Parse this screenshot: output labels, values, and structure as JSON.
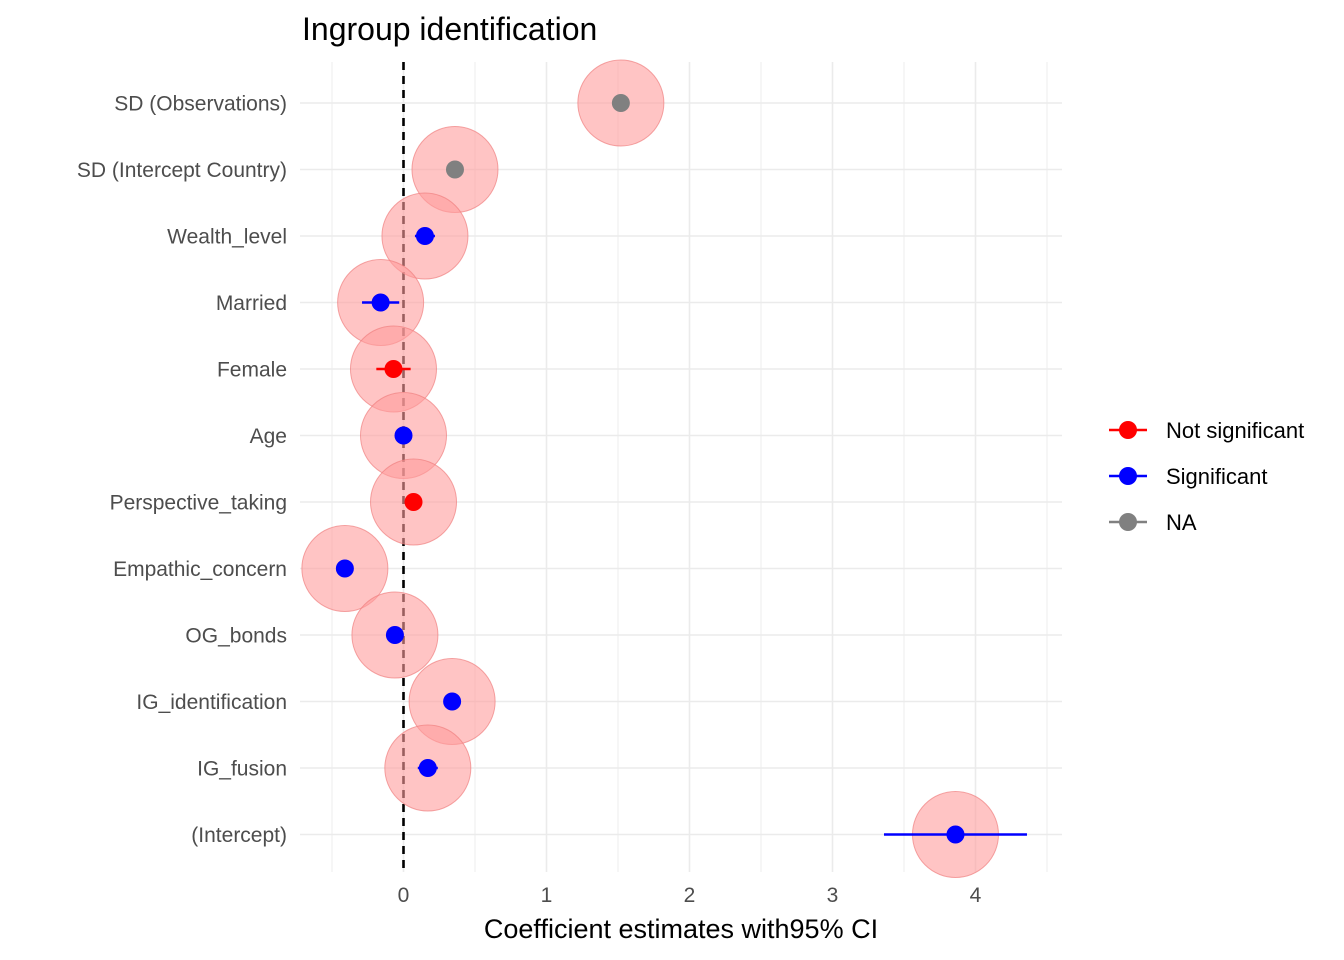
{
  "chart_data": {
    "type": "scatter",
    "title": "Ingroup identification",
    "xlabel": "Coefficient estimates with95% CI",
    "ylabel": "",
    "xlim": [
      -0.5,
      4.5
    ],
    "x_ticks": [
      "0",
      "1",
      "2",
      "3",
      "4"
    ],
    "grid": true,
    "reference_line": {
      "x": 0,
      "style": "dashed",
      "color": "#000000"
    },
    "legend_position": "right",
    "legend": [
      {
        "label": "Not significant",
        "color": "#ff0000"
      },
      {
        "label": "Significant",
        "color": "#0000ff"
      },
      {
        "label": "NA",
        "color": "#808080"
      }
    ],
    "halo_color": "#ff9c9c",
    "categories": [
      "SD (Observations)",
      "SD (Intercept Country)",
      "Wealth_level",
      "Married",
      "Female",
      "Age",
      "Perspective_taking",
      "Empathic_concern",
      "OG_bonds",
      "IG_identification",
      "IG_fusion",
      "(Intercept)"
    ],
    "points": [
      {
        "term": "SD (Observations)",
        "estimate": 1.52,
        "ci_low": null,
        "ci_high": null,
        "group": "NA"
      },
      {
        "term": "SD (Intercept Country)",
        "estimate": 0.36,
        "ci_low": null,
        "ci_high": null,
        "group": "NA"
      },
      {
        "term": "Wealth_level",
        "estimate": 0.15,
        "ci_low": 0.08,
        "ci_high": 0.22,
        "group": "Significant"
      },
      {
        "term": "Married",
        "estimate": -0.16,
        "ci_low": -0.29,
        "ci_high": -0.03,
        "group": "Significant"
      },
      {
        "term": "Female",
        "estimate": -0.07,
        "ci_low": -0.19,
        "ci_high": 0.05,
        "group": "Not significant"
      },
      {
        "term": "Age",
        "estimate": 0.0,
        "ci_low": -0.02,
        "ci_high": 0.02,
        "group": "Significant"
      },
      {
        "term": "Perspective_taking",
        "estimate": 0.07,
        "ci_low": 0.01,
        "ci_high": 0.13,
        "group": "Not significant"
      },
      {
        "term": "Empathic_concern",
        "estimate": -0.41,
        "ci_low": -0.46,
        "ci_high": -0.36,
        "group": "Significant"
      },
      {
        "term": "OG_bonds",
        "estimate": -0.06,
        "ci_low": -0.1,
        "ci_high": -0.02,
        "group": "Significant"
      },
      {
        "term": "IG_identification",
        "estimate": 0.34,
        "ci_low": 0.28,
        "ci_high": 0.4,
        "group": "Significant"
      },
      {
        "term": "IG_fusion",
        "estimate": 0.17,
        "ci_low": 0.1,
        "ci_high": 0.24,
        "group": "Significant"
      },
      {
        "term": "(Intercept)",
        "estimate": 3.86,
        "ci_low": 3.36,
        "ci_high": 4.36,
        "group": "Significant"
      }
    ]
  }
}
